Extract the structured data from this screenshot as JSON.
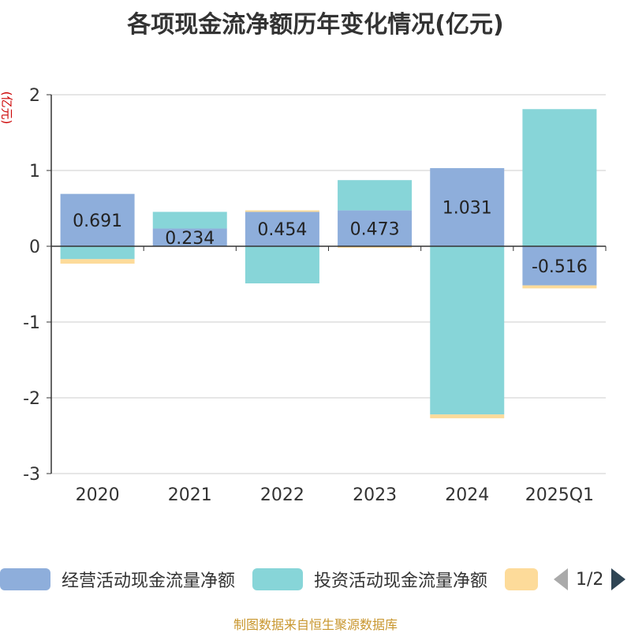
{
  "title": "各项现金流净额历年变化情况(亿元)",
  "unit_label": "(亿元)",
  "footer": "制图数据来自恒生聚源数据库",
  "legend": {
    "items": [
      {
        "label": "经营活动现金流量净额",
        "color": "#8eaedb"
      },
      {
        "label": "投资活动现金流量净额",
        "color": "#87d5d8"
      },
      {
        "label": "",
        "color": "#fddb9a"
      }
    ],
    "page": "1/2"
  },
  "chart_data": {
    "type": "bar",
    "stacked": true,
    "categories": [
      "2020",
      "2021",
      "2022",
      "2023",
      "2024",
      "2025Q1"
    ],
    "ylim": [
      -3,
      2
    ],
    "yticks": [
      2,
      1,
      0,
      -1,
      -2,
      -3
    ],
    "grid": true,
    "legend_position": "bottom",
    "series": [
      {
        "name": "经营活动现金流量净额",
        "color": "#8eaedb",
        "values": [
          0.691,
          0.234,
          0.454,
          0.473,
          1.031,
          -0.516
        ],
        "labels": [
          "0.691",
          "0.234",
          "0.454",
          "0.473",
          "1.031",
          "-0.516"
        ]
      },
      {
        "name": "投资活动现金流量净额",
        "color": "#87d5d8",
        "values": [
          -0.17,
          0.22,
          -0.49,
          0.4,
          -2.22,
          1.81
        ]
      },
      {
        "color": "#fddb9a",
        "values": [
          -0.06,
          0.0,
          0.02,
          -0.02,
          -0.05,
          -0.04
        ]
      }
    ]
  }
}
